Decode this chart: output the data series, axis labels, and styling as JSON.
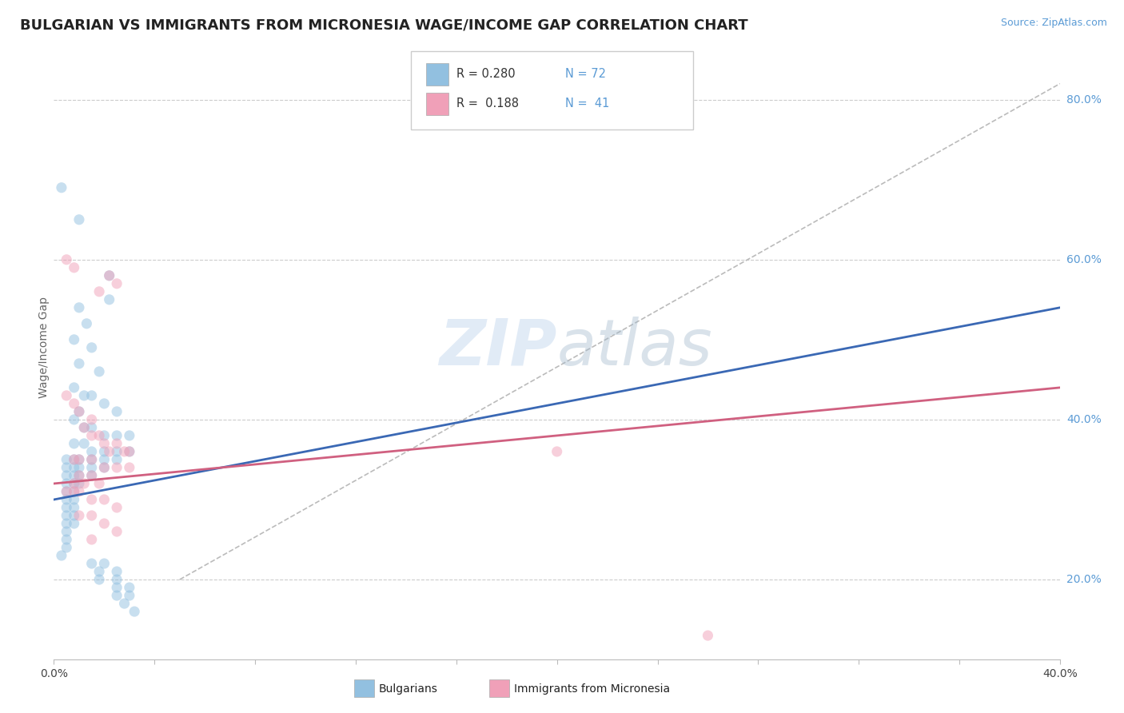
{
  "title": "BULGARIAN VS IMMIGRANTS FROM MICRONESIA WAGE/INCOME GAP CORRELATION CHART",
  "source": "Source: ZipAtlas.com",
  "ylabel": "Wage/Income Gap",
  "yaxis_labels": [
    "20.0%",
    "40.0%",
    "60.0%",
    "80.0%"
  ],
  "yaxis_vals": [
    0.2,
    0.4,
    0.6,
    0.8
  ],
  "xmin": 0.0,
  "xmax": 0.4,
  "ymin": 0.1,
  "ymax": 0.88,
  "blue_scatter": [
    [
      0.003,
      0.69
    ],
    [
      0.01,
      0.65
    ],
    [
      0.022,
      0.58
    ],
    [
      0.022,
      0.55
    ],
    [
      0.01,
      0.54
    ],
    [
      0.013,
      0.52
    ],
    [
      0.008,
      0.5
    ],
    [
      0.015,
      0.49
    ],
    [
      0.01,
      0.47
    ],
    [
      0.018,
      0.46
    ],
    [
      0.008,
      0.44
    ],
    [
      0.012,
      0.43
    ],
    [
      0.015,
      0.43
    ],
    [
      0.02,
      0.42
    ],
    [
      0.01,
      0.41
    ],
    [
      0.025,
      0.41
    ],
    [
      0.008,
      0.4
    ],
    [
      0.012,
      0.39
    ],
    [
      0.015,
      0.39
    ],
    [
      0.02,
      0.38
    ],
    [
      0.025,
      0.38
    ],
    [
      0.03,
      0.38
    ],
    [
      0.008,
      0.37
    ],
    [
      0.012,
      0.37
    ],
    [
      0.015,
      0.36
    ],
    [
      0.02,
      0.36
    ],
    [
      0.025,
      0.36
    ],
    [
      0.03,
      0.36
    ],
    [
      0.005,
      0.35
    ],
    [
      0.008,
      0.35
    ],
    [
      0.01,
      0.35
    ],
    [
      0.015,
      0.35
    ],
    [
      0.02,
      0.35
    ],
    [
      0.025,
      0.35
    ],
    [
      0.005,
      0.34
    ],
    [
      0.008,
      0.34
    ],
    [
      0.01,
      0.34
    ],
    [
      0.015,
      0.34
    ],
    [
      0.02,
      0.34
    ],
    [
      0.005,
      0.33
    ],
    [
      0.008,
      0.33
    ],
    [
      0.01,
      0.33
    ],
    [
      0.015,
      0.33
    ],
    [
      0.005,
      0.32
    ],
    [
      0.008,
      0.32
    ],
    [
      0.01,
      0.32
    ],
    [
      0.005,
      0.31
    ],
    [
      0.008,
      0.31
    ],
    [
      0.005,
      0.3
    ],
    [
      0.008,
      0.3
    ],
    [
      0.005,
      0.29
    ],
    [
      0.008,
      0.29
    ],
    [
      0.005,
      0.28
    ],
    [
      0.008,
      0.28
    ],
    [
      0.005,
      0.27
    ],
    [
      0.008,
      0.27
    ],
    [
      0.005,
      0.26
    ],
    [
      0.005,
      0.25
    ],
    [
      0.005,
      0.24
    ],
    [
      0.003,
      0.23
    ],
    [
      0.015,
      0.22
    ],
    [
      0.02,
      0.22
    ],
    [
      0.018,
      0.21
    ],
    [
      0.025,
      0.21
    ],
    [
      0.018,
      0.2
    ],
    [
      0.025,
      0.2
    ],
    [
      0.025,
      0.19
    ],
    [
      0.03,
      0.19
    ],
    [
      0.025,
      0.18
    ],
    [
      0.03,
      0.18
    ],
    [
      0.028,
      0.17
    ],
    [
      0.032,
      0.16
    ]
  ],
  "pink_scatter": [
    [
      0.005,
      0.6
    ],
    [
      0.008,
      0.59
    ],
    [
      0.022,
      0.58
    ],
    [
      0.025,
      0.57
    ],
    [
      0.018,
      0.56
    ],
    [
      0.005,
      0.43
    ],
    [
      0.008,
      0.42
    ],
    [
      0.01,
      0.41
    ],
    [
      0.015,
      0.4
    ],
    [
      0.012,
      0.39
    ],
    [
      0.015,
      0.38
    ],
    [
      0.018,
      0.38
    ],
    [
      0.02,
      0.37
    ],
    [
      0.025,
      0.37
    ],
    [
      0.022,
      0.36
    ],
    [
      0.028,
      0.36
    ],
    [
      0.03,
      0.36
    ],
    [
      0.008,
      0.35
    ],
    [
      0.01,
      0.35
    ],
    [
      0.015,
      0.35
    ],
    [
      0.02,
      0.34
    ],
    [
      0.025,
      0.34
    ],
    [
      0.03,
      0.34
    ],
    [
      0.01,
      0.33
    ],
    [
      0.015,
      0.33
    ],
    [
      0.008,
      0.32
    ],
    [
      0.012,
      0.32
    ],
    [
      0.018,
      0.32
    ],
    [
      0.005,
      0.31
    ],
    [
      0.008,
      0.31
    ],
    [
      0.01,
      0.31
    ],
    [
      0.015,
      0.3
    ],
    [
      0.02,
      0.3
    ],
    [
      0.025,
      0.29
    ],
    [
      0.01,
      0.28
    ],
    [
      0.015,
      0.28
    ],
    [
      0.02,
      0.27
    ],
    [
      0.025,
      0.26
    ],
    [
      0.015,
      0.25
    ],
    [
      0.2,
      0.36
    ],
    [
      0.26,
      0.13
    ]
  ],
  "blue_line": {
    "x": [
      0.0,
      0.4
    ],
    "y": [
      0.3,
      0.54
    ]
  },
  "pink_line": {
    "x": [
      0.0,
      0.4
    ],
    "y": [
      0.32,
      0.44
    ]
  },
  "diagonal_line": {
    "x": [
      0.05,
      0.4
    ],
    "y": [
      0.2,
      0.82
    ]
  },
  "scatter_alpha": 0.5,
  "scatter_size": 90,
  "blue_color": "#92c0e0",
  "pink_color": "#f0a0b8",
  "blue_line_color": "#3a68b4",
  "pink_line_color": "#d06080",
  "diag_line_color": "#bbbbbb",
  "background_color": "#ffffff",
  "title_fontsize": 13,
  "label_fontsize": 10,
  "tick_fontsize": 10,
  "watermark_zip": "ZIP",
  "watermark_atlas": "atlas"
}
